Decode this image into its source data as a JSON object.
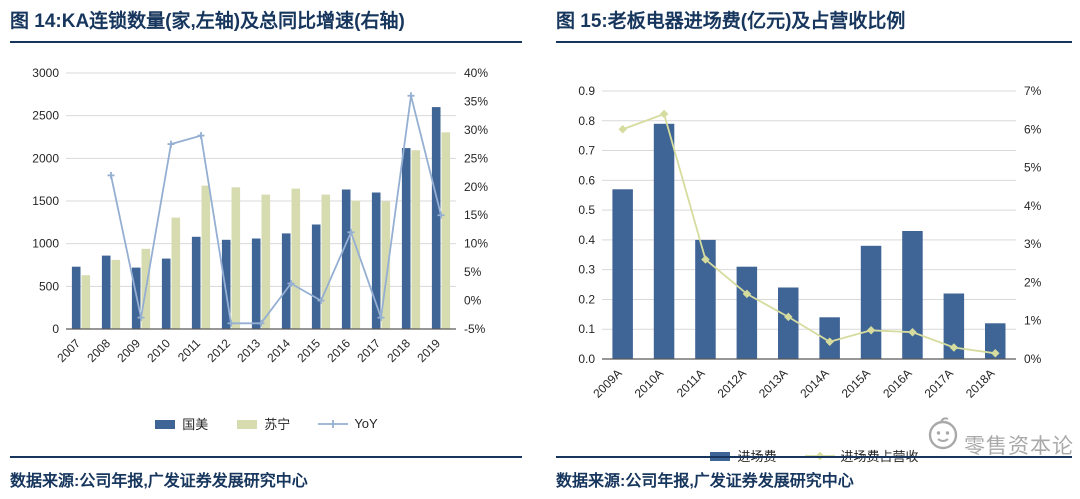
{
  "colors": {
    "title": "#17365D",
    "rule": "#17365D",
    "source": "#17365D",
    "grid": "#D9D9D9",
    "axis": "#595959",
    "tick_text": "#262626",
    "bar_blue": "#3F6496",
    "bar_green": "#D7DCB0",
    "line_blue": "#95AFD3",
    "line_green": "#D6DC9E",
    "watermark": "#A9A9A9"
  },
  "left_panel": {
    "title": "图 14:KA连锁数量(家,左轴)及总同比增速(右轴)",
    "source": "数据来源:公司年报,广发证券发展研究中心"
  },
  "right_panel": {
    "title": "图 15:老板电器进场费(亿元)及占营收比例",
    "source": "数据来源:公司年报,广发证券发展研究中心"
  },
  "watermark": {
    "text": "零售资本论"
  },
  "chart_data": [
    {
      "type": "bar+line",
      "title": "KA连锁数量(家,左轴)及总同比增速(右轴)",
      "categories": [
        "2007",
        "2008",
        "2009",
        "2010",
        "2011",
        "2012",
        "2013",
        "2014",
        "2015",
        "2016",
        "2017",
        "2018",
        "2019"
      ],
      "bar_series": [
        {
          "name": "国美",
          "color_key": "bar_blue",
          "values": [
            730,
            860,
            720,
            825,
            1080,
            1045,
            1060,
            1120,
            1225,
            1635,
            1600,
            2120,
            2600
          ]
        },
        {
          "name": "苏宁",
          "color_key": "bar_green",
          "values": [
            630,
            810,
            940,
            1305,
            1680,
            1660,
            1575,
            1645,
            1575,
            1505,
            1495,
            2095,
            2305
          ]
        }
      ],
      "line_series": [
        {
          "name": "YoY",
          "color_key": "line_blue",
          "axis": "right",
          "marker": "plus",
          "values": [
            null,
            22,
            -3,
            27.5,
            29,
            -4,
            -4,
            3,
            0,
            12,
            -3,
            36,
            15
          ]
        }
      ],
      "left_axis": {
        "min": 0,
        "max": 3000,
        "step": 500,
        "format": "int"
      },
      "right_axis": {
        "min": -5,
        "max": 40,
        "step": 5,
        "format": "pct"
      },
      "legend": [
        "国美",
        "苏宁",
        "YoY"
      ],
      "grid": true,
      "legend_position": "bottom"
    },
    {
      "type": "bar+line",
      "title": "老板电器进场费(亿元)及占营收比例",
      "categories": [
        "2009A",
        "2010A",
        "2011A",
        "2012A",
        "2013A",
        "2014A",
        "2015A",
        "2016A",
        "2017A",
        "2018A"
      ],
      "bar_series": [
        {
          "name": "进场费",
          "color_key": "bar_blue",
          "values": [
            0.57,
            0.79,
            0.4,
            0.31,
            0.24,
            0.14,
            0.38,
            0.43,
            0.22,
            0.12
          ]
        }
      ],
      "line_series": [
        {
          "name": "进场费占营收",
          "color_key": "line_green",
          "axis": "right",
          "marker": "diamond",
          "values": [
            6.0,
            6.4,
            2.6,
            1.7,
            1.1,
            0.45,
            0.75,
            0.7,
            0.3,
            0.15
          ]
        }
      ],
      "left_axis": {
        "min": 0,
        "max": 0.9,
        "step": 0.1,
        "format": "dec1"
      },
      "right_axis": {
        "min": 0,
        "max": 7,
        "step": 1,
        "format": "pct"
      },
      "legend": [
        "进场费",
        "进场费占营收"
      ],
      "grid": true,
      "legend_position": "bottom"
    }
  ]
}
